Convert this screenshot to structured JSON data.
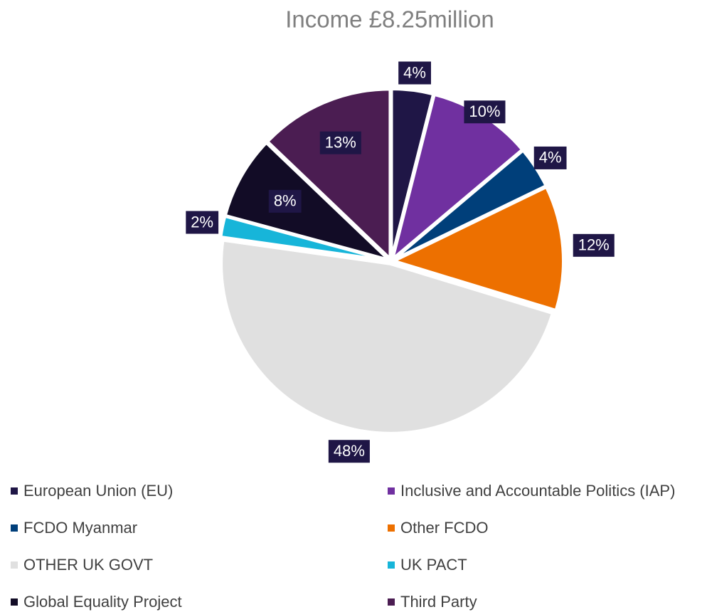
{
  "chart_data": {
    "type": "pie",
    "title": "Income £8.25million",
    "categories": [
      "European Union (EU)",
      "Inclusive and Accountable Politics (IAP)",
      "FCDO Myanmar",
      "Other FCDO",
      "OTHER UK GOVT",
      "UK PACT",
      "Global Equality Project",
      "Third Party"
    ],
    "values": [
      4,
      10,
      4,
      12,
      48,
      2,
      8,
      13
    ],
    "value_labels": [
      "4%",
      "10%",
      "4%",
      "12%",
      "48%",
      "2%",
      "8%",
      "13%"
    ],
    "colors": [
      "#1f1646",
      "#7030a0",
      "#003f7a",
      "#ed7000",
      "#e0e0e0",
      "#17b5d9",
      "#120c26",
      "#4b1d52"
    ],
    "legend": "bottom"
  }
}
